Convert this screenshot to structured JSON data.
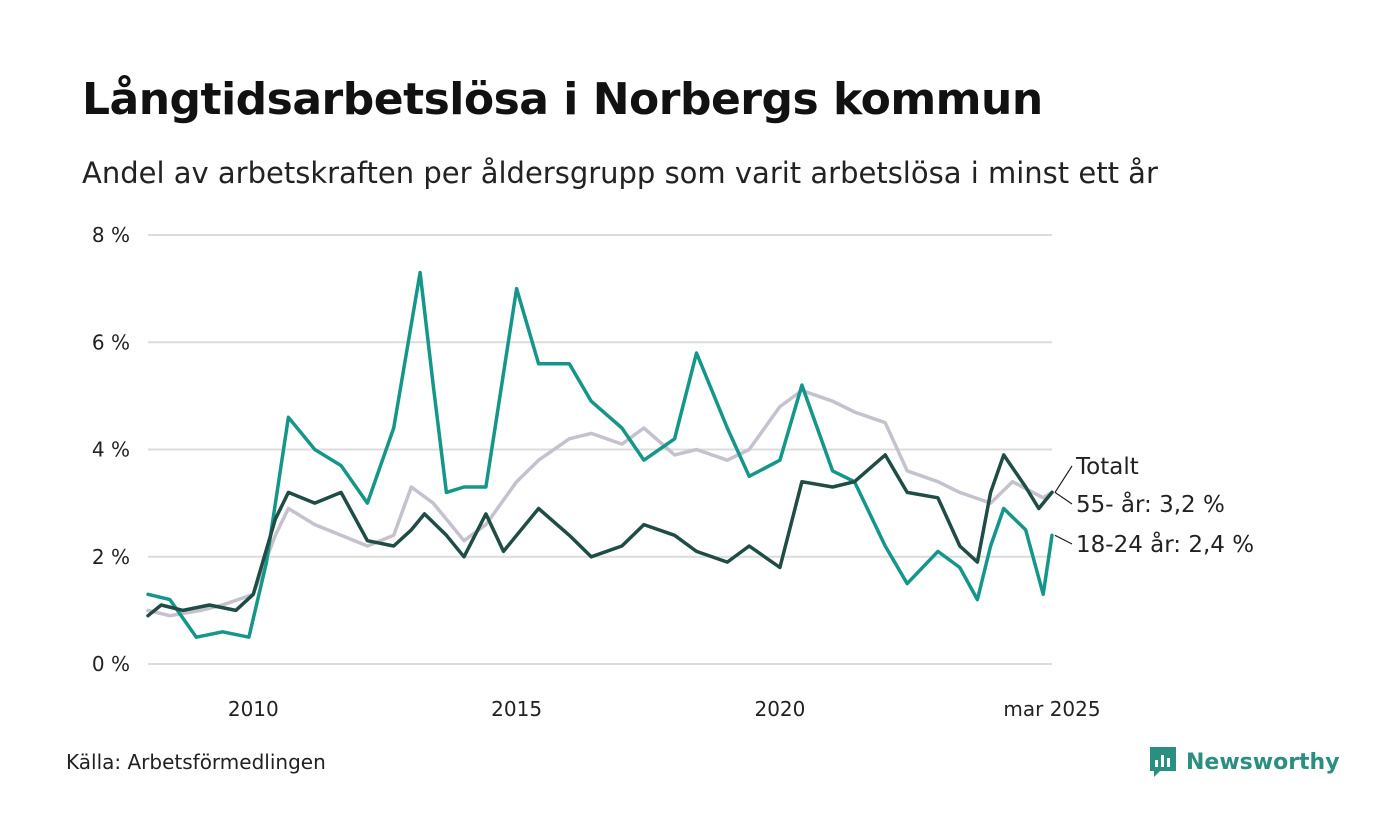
{
  "title": "Långtidsarbetslösa i Norbergs kommun",
  "subtitle": "Andel av arbetskraften per åldersgrupp som varit arbetslösa i minst ett år",
  "source": "Källa: Arbetsförmedlingen",
  "brand": "Newsworthy",
  "colors": {
    "total": "#c5c1cd",
    "age55": "#1f4d45",
    "age18_24": "#15968a",
    "grid": "#dcdcdc"
  },
  "end_labels": {
    "total": "Totalt",
    "age55": "55- år: 3,2 %",
    "age18_24": "18-24 år: 2,4 %"
  },
  "chart_data": {
    "type": "line",
    "title": "Långtidsarbetslösa i Norbergs kommun",
    "subtitle": "Andel av arbetskraften per åldersgrupp som varit arbetslösa i minst ett år",
    "x_range": [
      "2008-01",
      "2025-03"
    ],
    "x_ticks": [
      {
        "x": "2010-01",
        "label": "2010"
      },
      {
        "x": "2015-01",
        "label": "2015"
      },
      {
        "x": "2020-01",
        "label": "2020"
      },
      {
        "x": "2025-03",
        "label": "mar 2025"
      }
    ],
    "ylim": [
      0,
      8
    ],
    "y_ticks": [
      {
        "value": 0,
        "label": "0 %"
      },
      {
        "value": 2,
        "label": "2 %"
      },
      {
        "value": 4,
        "label": "4 %"
      },
      {
        "value": 6,
        "label": "6 %"
      },
      {
        "value": 8,
        "label": "8 %"
      }
    ],
    "grid": true,
    "legend": "end-of-line labels",
    "series": [
      {
        "name": "Totalt",
        "key": "total",
        "points": [
          [
            "2008-01",
            1.0
          ],
          [
            "2008-06",
            0.9
          ],
          [
            "2009-01",
            1.0
          ],
          [
            "2009-06",
            1.1
          ],
          [
            "2010-01",
            1.3
          ],
          [
            "2010-06",
            2.4
          ],
          [
            "2010-09",
            2.9
          ],
          [
            "2011-03",
            2.6
          ],
          [
            "2011-09",
            2.4
          ],
          [
            "2012-03",
            2.2
          ],
          [
            "2012-09",
            2.4
          ],
          [
            "2013-01",
            3.3
          ],
          [
            "2013-06",
            3.0
          ],
          [
            "2014-01",
            2.3
          ],
          [
            "2014-06",
            2.6
          ],
          [
            "2015-01",
            3.4
          ],
          [
            "2015-06",
            3.8
          ],
          [
            "2016-01",
            4.2
          ],
          [
            "2016-06",
            4.3
          ],
          [
            "2017-01",
            4.1
          ],
          [
            "2017-06",
            4.4
          ],
          [
            "2018-01",
            3.9
          ],
          [
            "2018-06",
            4.0
          ],
          [
            "2019-01",
            3.8
          ],
          [
            "2019-06",
            4.0
          ],
          [
            "2020-01",
            4.8
          ],
          [
            "2020-06",
            5.1
          ],
          [
            "2021-01",
            4.9
          ],
          [
            "2021-06",
            4.7
          ],
          [
            "2022-01",
            4.5
          ],
          [
            "2022-06",
            3.6
          ],
          [
            "2023-01",
            3.4
          ],
          [
            "2023-06",
            3.2
          ],
          [
            "2024-01",
            3.0
          ],
          [
            "2024-06",
            3.4
          ],
          [
            "2025-01",
            3.1
          ],
          [
            "2025-03",
            3.2
          ]
        ]
      },
      {
        "name": "55- år",
        "key": "age55",
        "points": [
          [
            "2008-01",
            0.9
          ],
          [
            "2008-04",
            1.1
          ],
          [
            "2008-09",
            1.0
          ],
          [
            "2009-03",
            1.1
          ],
          [
            "2009-09",
            1.0
          ],
          [
            "2010-01",
            1.3
          ],
          [
            "2010-06",
            2.7
          ],
          [
            "2010-09",
            3.2
          ],
          [
            "2011-03",
            3.0
          ],
          [
            "2011-09",
            3.2
          ],
          [
            "2012-03",
            2.3
          ],
          [
            "2012-09",
            2.2
          ],
          [
            "2013-01",
            2.5
          ],
          [
            "2013-04",
            2.8
          ],
          [
            "2013-09",
            2.4
          ],
          [
            "2014-01",
            2.0
          ],
          [
            "2014-06",
            2.8
          ],
          [
            "2014-10",
            2.1
          ],
          [
            "2015-01",
            2.4
          ],
          [
            "2015-06",
            2.9
          ],
          [
            "2016-01",
            2.4
          ],
          [
            "2016-06",
            2.0
          ],
          [
            "2017-01",
            2.2
          ],
          [
            "2017-06",
            2.6
          ],
          [
            "2018-01",
            2.4
          ],
          [
            "2018-06",
            2.1
          ],
          [
            "2019-01",
            1.9
          ],
          [
            "2019-06",
            2.2
          ],
          [
            "2020-01",
            1.8
          ],
          [
            "2020-06",
            3.4
          ],
          [
            "2021-01",
            3.3
          ],
          [
            "2021-06",
            3.4
          ],
          [
            "2022-01",
            3.9
          ],
          [
            "2022-06",
            3.2
          ],
          [
            "2023-01",
            3.1
          ],
          [
            "2023-06",
            2.2
          ],
          [
            "2023-10",
            1.9
          ],
          [
            "2024-01",
            3.2
          ],
          [
            "2024-04",
            3.9
          ],
          [
            "2024-09",
            3.3
          ],
          [
            "2024-12",
            2.9
          ],
          [
            "2025-03",
            3.2
          ]
        ]
      },
      {
        "name": "18-24 år",
        "key": "age18_24",
        "points": [
          [
            "2008-01",
            1.3
          ],
          [
            "2008-06",
            1.2
          ],
          [
            "2008-12",
            0.5
          ],
          [
            "2009-06",
            0.6
          ],
          [
            "2009-12",
            0.5
          ],
          [
            "2010-04",
            1.9
          ],
          [
            "2010-09",
            4.6
          ],
          [
            "2011-03",
            4.0
          ],
          [
            "2011-09",
            3.7
          ],
          [
            "2012-03",
            3.0
          ],
          [
            "2012-09",
            4.4
          ],
          [
            "2013-03",
            7.3
          ],
          [
            "2013-06",
            5.2
          ],
          [
            "2013-09",
            3.2
          ],
          [
            "2014-01",
            3.3
          ],
          [
            "2014-06",
            3.3
          ],
          [
            "2015-01",
            7.0
          ],
          [
            "2015-06",
            5.6
          ],
          [
            "2016-01",
            5.6
          ],
          [
            "2016-06",
            4.9
          ],
          [
            "2017-01",
            4.4
          ],
          [
            "2017-06",
            3.8
          ],
          [
            "2018-01",
            4.2
          ],
          [
            "2018-06",
            5.8
          ],
          [
            "2019-01",
            4.4
          ],
          [
            "2019-06",
            3.5
          ],
          [
            "2020-01",
            3.8
          ],
          [
            "2020-06",
            5.2
          ],
          [
            "2021-01",
            3.6
          ],
          [
            "2021-06",
            3.4
          ],
          [
            "2022-01",
            2.2
          ],
          [
            "2022-06",
            1.5
          ],
          [
            "2023-01",
            2.1
          ],
          [
            "2023-06",
            1.8
          ],
          [
            "2023-10",
            1.2
          ],
          [
            "2024-01",
            2.2
          ],
          [
            "2024-04",
            2.9
          ],
          [
            "2024-09",
            2.5
          ],
          [
            "2025-01",
            1.3
          ],
          [
            "2025-03",
            2.4
          ]
        ]
      }
    ]
  }
}
